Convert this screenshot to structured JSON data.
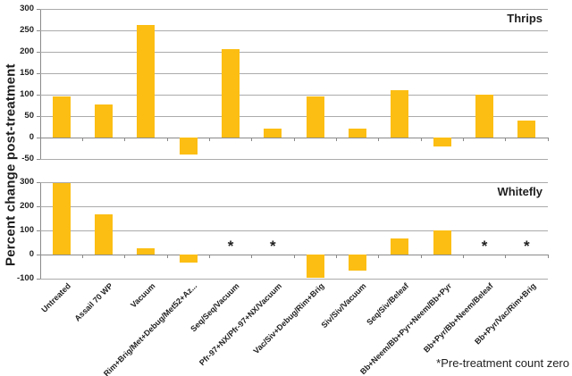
{
  "figure": {
    "y_axis_label": "Percent change post-treatment",
    "footnote": "*Pre-treatment count zero",
    "background_color": "#FFFFFF",
    "bar_color": "#FCBE13",
    "gridline_color": "#ABABAB",
    "axis_color": "#8A8A8A",
    "text_color": "#1F1F1F"
  },
  "chart_data": [
    {
      "type": "bar",
      "title": "Thrips",
      "categories": [
        "Untreated",
        "Assail 70 WP",
        "Vacuum",
        "Rim+Brig/Met+Debug/Met52+Az...",
        "Seq/Seq/Vacuum",
        "Pfr-97+NX/Pfr-97+NX/Vacuum",
        "Vac/Siv+Debug/Rim+Brig",
        "Siv/Siv/Vacuum",
        "Seq/Siv/Beleaf",
        "Bb+Neem/Bb+Pyr+Neem/Bb+Pyr",
        "Bb+Pyr/Bb+Neem/Beleaf",
        "Bb+Pyr/Vac/Rim+Brig"
      ],
      "values": [
        95,
        77,
        262,
        -40,
        207,
        20,
        95,
        20,
        110,
        -20,
        100,
        40
      ],
      "xlabel": "",
      "ylabel": "Percent change post-treatment",
      "ylim": [
        -50,
        300
      ],
      "yticks": [
        300,
        250,
        200,
        150,
        100,
        50,
        0,
        -50
      ],
      "grid": true,
      "legend": "none"
    },
    {
      "type": "bar",
      "title": "Whitefly",
      "categories": [
        "Untreated",
        "Assail 70 WP",
        "Vacuum",
        "Rim+Brig/Met+Debug/Met52+Az...",
        "Seq/Seq/Vacuum",
        "Pfr-97+NX/Pfr-97+NX/Vacuum",
        "Vac/Siv+Debug/Rim+Brig",
        "Siv/Siv/Vacuum",
        "Seq/Siv/Beleaf",
        "Bb+Neem/Bb+Pyr+Neem/Bb+Pyr",
        "Bb+Pyr/Bb+Neem/Beleaf",
        "Bb+Pyr/Vac/Rim+Brig"
      ],
      "values": [
        295,
        165,
        25,
        -35,
        null,
        null,
        -95,
        -65,
        65,
        100,
        null,
        null
      ],
      "null_value_marker": "*",
      "null_value_meaning": "Pre-treatment count zero",
      "asterisk_indices": [
        4,
        5,
        10,
        11
      ],
      "xlabel": "",
      "ylabel": "Percent change post-treatment",
      "ylim": [
        -100,
        300
      ],
      "yticks": [
        300,
        200,
        100,
        0,
        -100
      ],
      "grid": true,
      "legend": "none"
    }
  ]
}
